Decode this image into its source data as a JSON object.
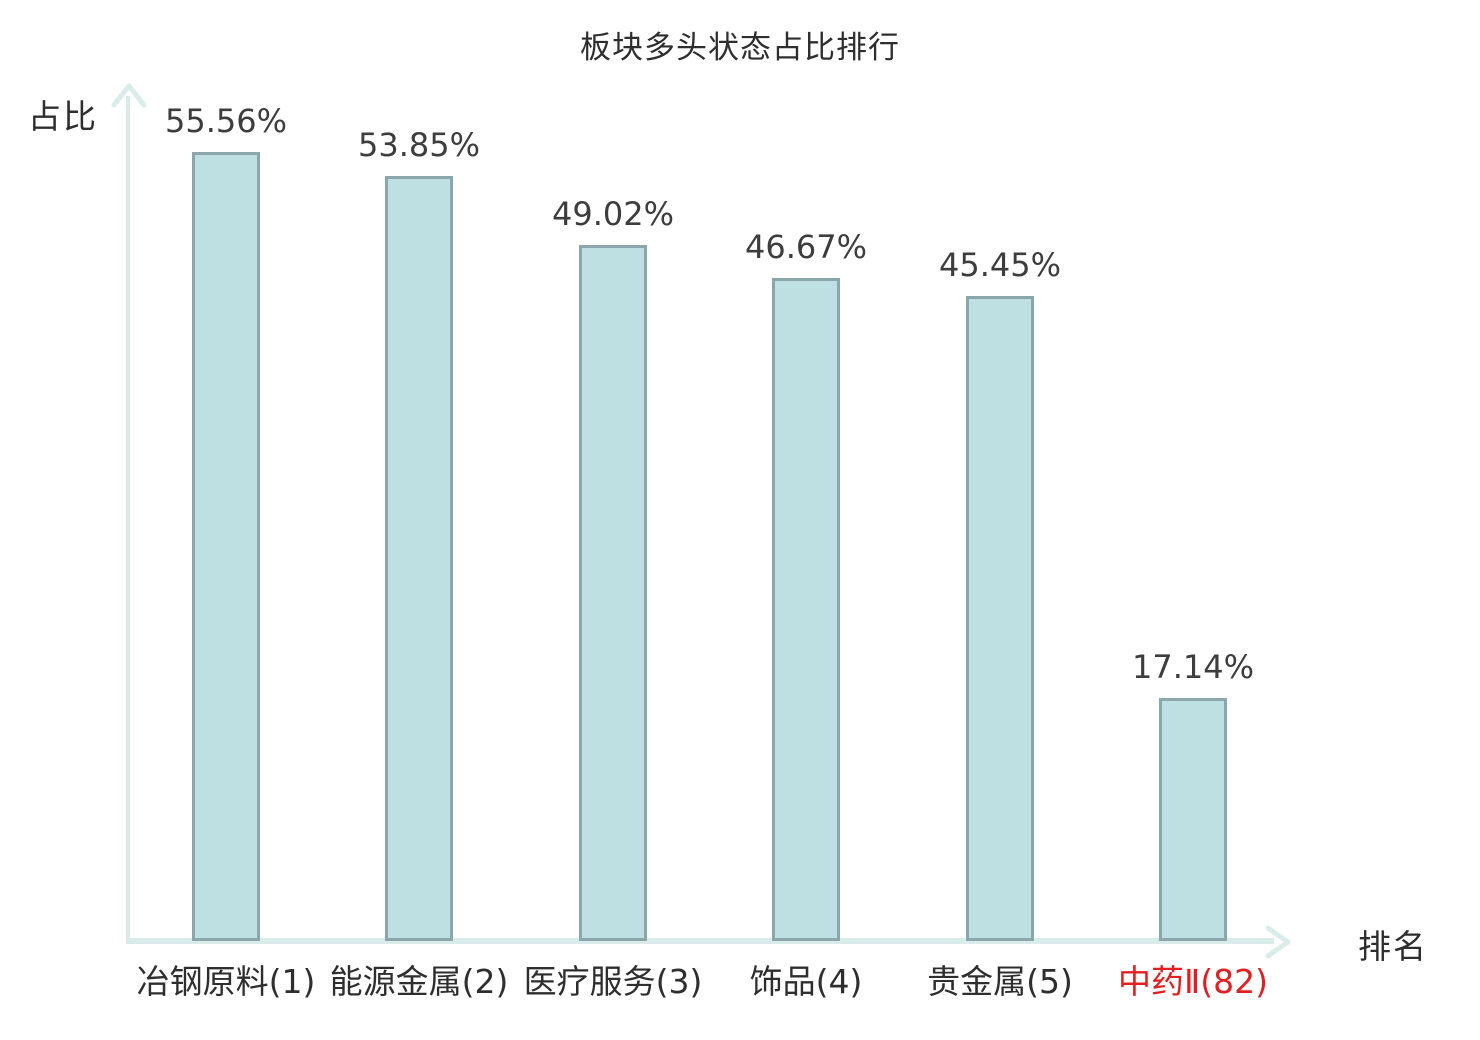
{
  "chart_data": {
    "type": "bar",
    "title": "板块多头状态占比排行",
    "xlabel": "排名",
    "ylabel": "占比",
    "categories": [
      "冶钢原料(1)",
      "能源金属(2)",
      "医疗服务(3)",
      "饰品(4)",
      "贵金属(5)",
      "中药Ⅱ(82)"
    ],
    "values": [
      55.56,
      53.85,
      49.02,
      46.67,
      45.45,
      17.14
    ],
    "value_labels": [
      "55.56%",
      "53.85%",
      "49.02%",
      "46.67%",
      "45.45%",
      "17.14%"
    ],
    "highlight_index": 5,
    "ylim": [
      0,
      60
    ],
    "grid": false,
    "legend": "none",
    "colors": {
      "bar_fill": "#bfe0e2",
      "bar_border": "#8ca7ac",
      "axis": "#d9ece9",
      "text": "#2e2e2e",
      "value_text": "#3d3d3d",
      "highlight": "#e02020"
    }
  }
}
